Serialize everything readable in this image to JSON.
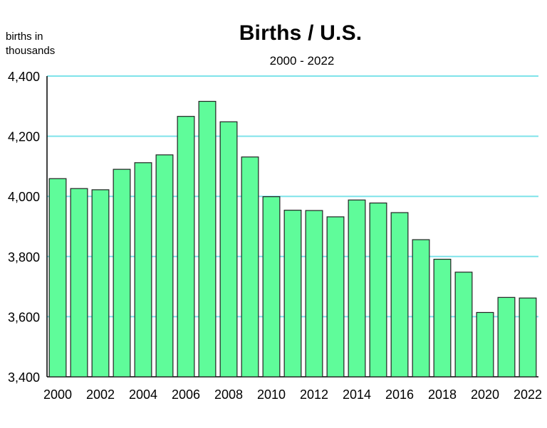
{
  "chart_data": {
    "type": "bar",
    "title": "Births / U.S.",
    "subtitle": "2000 - 2022",
    "ylabel_line1": "births in",
    "ylabel_line2": "thousands",
    "xlabel": "",
    "ylim": [
      3400,
      4400
    ],
    "yticks": [
      3400,
      3600,
      3800,
      4000,
      4200,
      4400
    ],
    "ytick_labels": [
      "3,400",
      "3,600",
      "3,800",
      "4,000",
      "4,200",
      "4,400"
    ],
    "grid": true,
    "categories": [
      "2000",
      "2001",
      "2002",
      "2003",
      "2004",
      "2005",
      "2006",
      "2007",
      "2008",
      "2009",
      "2010",
      "2011",
      "2012",
      "2013",
      "2014",
      "2015",
      "2016",
      "2017",
      "2018",
      "2019",
      "2020",
      "2021",
      "2022"
    ],
    "xtick_labels": [
      "2000",
      "",
      "2002",
      "",
      "2004",
      "",
      "2006",
      "",
      "2008",
      "",
      "2010",
      "",
      "2012",
      "",
      "2014",
      "",
      "2016",
      "",
      "2018",
      "",
      "2020",
      "",
      "2022"
    ],
    "values": [
      4059,
      4026,
      4022,
      4090,
      4112,
      4138,
      4266,
      4316,
      4248,
      4131,
      3999,
      3954,
      3953,
      3932,
      3988,
      3978,
      3946,
      3856,
      3791,
      3748,
      3614,
      3664,
      3662
    ],
    "bar_color": "#5ffc9a",
    "bar_stroke": "#222222",
    "grid_color": "#7fe3ea"
  }
}
